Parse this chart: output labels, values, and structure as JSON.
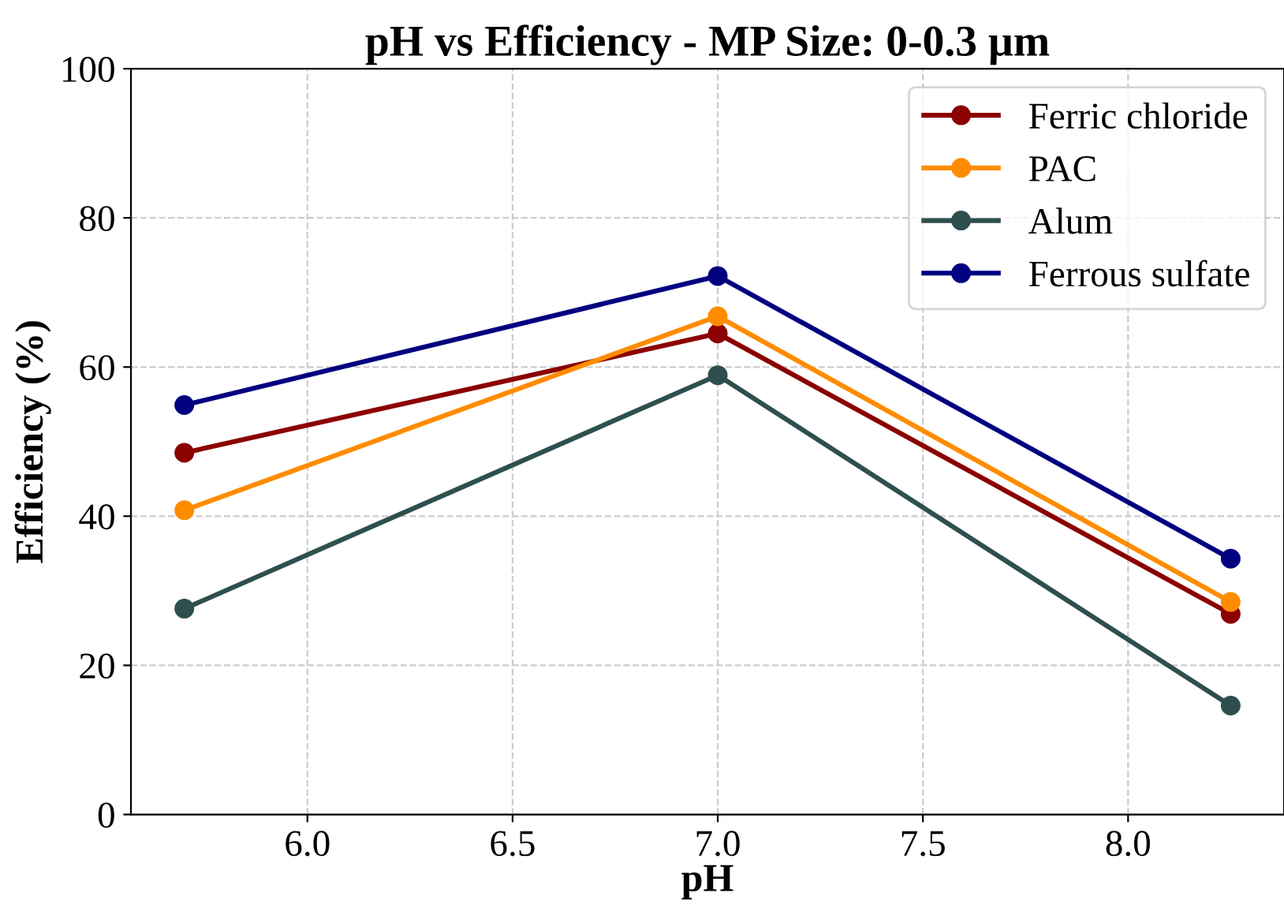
{
  "chart_data": {
    "type": "line",
    "title": "pH vs Efficiency - MP Size: 0-0.3 µm",
    "xlabel": "pH",
    "ylabel": "Efficiency (%)",
    "x": [
      5.7,
      7.0,
      8.25
    ],
    "series": [
      {
        "name": "Ferric chloride",
        "color": "#8b0000",
        "values": [
          48.5,
          64.5,
          26.9
        ]
      },
      {
        "name": "PAC",
        "color": "#ff8c00",
        "values": [
          40.8,
          66.8,
          28.5
        ]
      },
      {
        "name": "Alum",
        "color": "#2f4f4f",
        "values": [
          27.6,
          58.9,
          14.6
        ]
      },
      {
        "name": "Ferrous sulfate",
        "color": "#000080",
        "values": [
          54.9,
          72.2,
          34.3
        ]
      }
    ],
    "xlim": [
      5.57,
      8.38
    ],
    "xticks": [
      {
        "value": 6,
        "label": "6.0"
      },
      {
        "value": 6.5,
        "label": "6.5"
      },
      {
        "value": 7,
        "label": "7.0"
      },
      {
        "value": 7.5,
        "label": "7.5"
      },
      {
        "value": 8,
        "label": "8.0"
      }
    ],
    "ylim": [
      0,
      100
    ],
    "yticks": [
      0,
      20,
      40,
      60,
      80,
      100
    ],
    "grid": true,
    "legend": "top right",
    "marker": "circle",
    "line_style": "solid"
  }
}
